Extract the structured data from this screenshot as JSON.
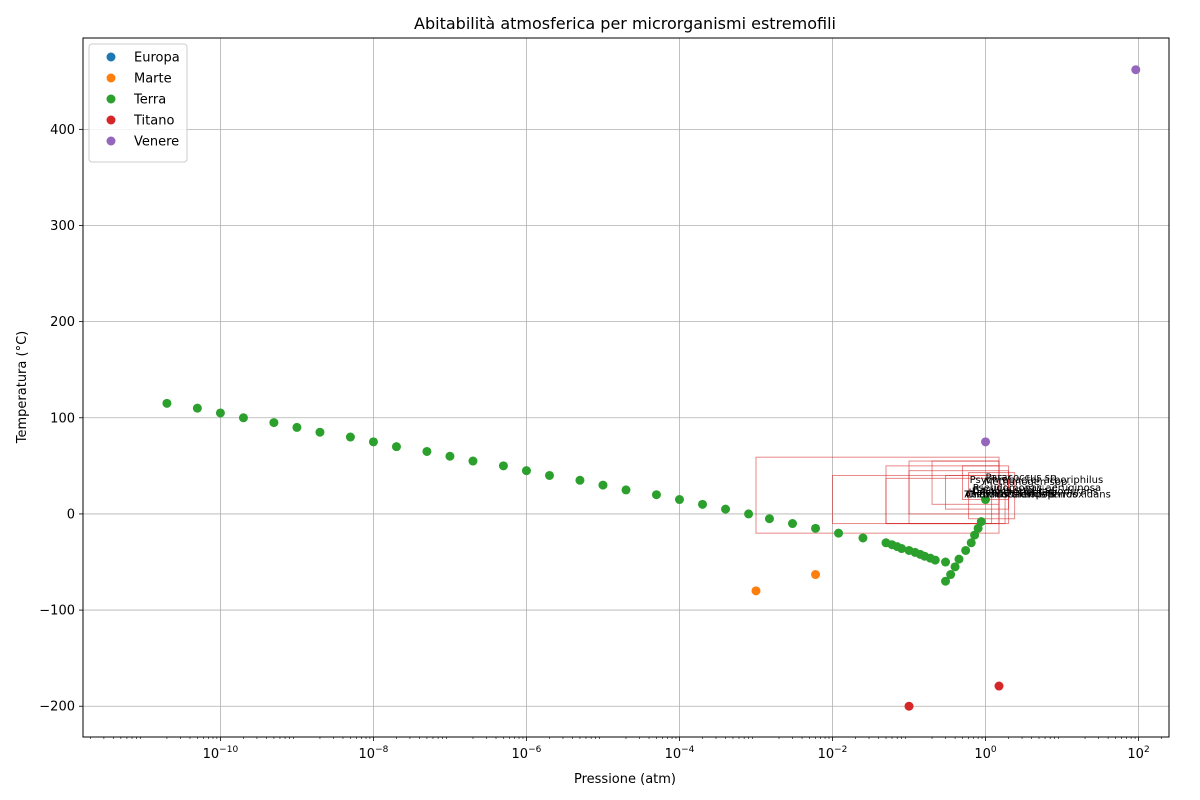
{
  "chart_data": {
    "type": "scatter",
    "title": "Abitabilità atmosferica per microrganismi estremofili",
    "xlabel": "Pressione (atm)",
    "ylabel": "Temperatura (°C)",
    "xscale": "log",
    "xlim": [
      1.6e-12,
      250
    ],
    "ylim": [
      -232,
      495
    ],
    "grid": true,
    "legend_position": "top-left",
    "x_ticks": [
      {
        "value": 1e-10,
        "base": "10",
        "exp": "−10"
      },
      {
        "value": 1e-08,
        "base": "10",
        "exp": "−8"
      },
      {
        "value": 1e-06,
        "base": "10",
        "exp": "−6"
      },
      {
        "value": 0.0001,
        "base": "10",
        "exp": "−4"
      },
      {
        "value": 0.01,
        "base": "10",
        "exp": "−2"
      },
      {
        "value": 1,
        "base": "10",
        "exp": "0"
      },
      {
        "value": 100,
        "base": "10",
        "exp": "2"
      }
    ],
    "y_ticks": [
      {
        "value": -200,
        "label": "−200"
      },
      {
        "value": -100,
        "label": "−100"
      },
      {
        "value": 0,
        "label": "0"
      },
      {
        "value": 100,
        "label": "100"
      },
      {
        "value": 200,
        "label": "200"
      },
      {
        "value": 300,
        "label": "300"
      },
      {
        "value": 400,
        "label": "400"
      }
    ],
    "series": [
      {
        "name": "Europa",
        "color": "#1f77b4",
        "points": []
      },
      {
        "name": "Marte",
        "color": "#ff7f0e",
        "points": [
          [
            0.001,
            -80
          ],
          [
            0.006,
            -63
          ]
        ]
      },
      {
        "name": "Terra",
        "color": "#2ca02c",
        "points": [
          [
            2e-11,
            115
          ],
          [
            5e-11,
            110
          ],
          [
            1e-10,
            105
          ],
          [
            2e-10,
            100
          ],
          [
            5e-10,
            95
          ],
          [
            1e-09,
            90
          ],
          [
            2e-09,
            85
          ],
          [
            5e-09,
            80
          ],
          [
            1e-08,
            75
          ],
          [
            2e-08,
            70
          ],
          [
            5e-08,
            65
          ],
          [
            1e-07,
            60
          ],
          [
            2e-07,
            55
          ],
          [
            5e-07,
            50
          ],
          [
            1e-06,
            45
          ],
          [
            2e-06,
            40
          ],
          [
            5e-06,
            35
          ],
          [
            1e-05,
            30
          ],
          [
            2e-05,
            25
          ],
          [
            5e-05,
            20
          ],
          [
            0.0001,
            15
          ],
          [
            0.0002,
            10
          ],
          [
            0.0004,
            5
          ],
          [
            0.0008,
            0
          ],
          [
            0.0015,
            -5
          ],
          [
            0.003,
            -10
          ],
          [
            0.006,
            -15
          ],
          [
            0.012,
            -20
          ],
          [
            0.025,
            -25
          ],
          [
            0.05,
            -30
          ],
          [
            0.06,
            -32
          ],
          [
            0.07,
            -34
          ],
          [
            0.08,
            -36
          ],
          [
            0.1,
            -38
          ],
          [
            0.12,
            -40
          ],
          [
            0.14,
            -42
          ],
          [
            0.16,
            -44
          ],
          [
            0.19,
            -46
          ],
          [
            0.22,
            -48
          ],
          [
            0.3,
            -50
          ],
          [
            0.3,
            -70
          ],
          [
            0.35,
            -63
          ],
          [
            0.4,
            -55
          ],
          [
            0.45,
            -47
          ],
          [
            0.55,
            -38
          ],
          [
            0.65,
            -30
          ],
          [
            0.72,
            -22
          ],
          [
            0.8,
            -15
          ],
          [
            0.88,
            -8
          ],
          [
            1.0,
            15
          ]
        ]
      },
      {
        "name": "Titano",
        "color": "#d62728",
        "points": [
          [
            0.1,
            -200
          ],
          [
            1.5,
            -179
          ]
        ]
      },
      {
        "name": "Venere",
        "color": "#9467bd",
        "points": [
          [
            1.0,
            75
          ],
          [
            92,
            462
          ]
        ]
      }
    ],
    "ranges": [
      {
        "p_min": 0.001,
        "p_max": 1.5,
        "t_min": -20,
        "t_max": 59
      },
      {
        "p_min": 0.01,
        "p_max": 1.2,
        "t_min": -10,
        "t_max": 40
      },
      {
        "p_min": 0.05,
        "p_max": 1.5,
        "t_min": -10,
        "t_max": 50
      },
      {
        "p_min": 0.05,
        "p_max": 1.8,
        "t_min": -10,
        "t_max": 37
      },
      {
        "p_min": 0.1,
        "p_max": 2.0,
        "t_min": -10,
        "t_max": 45
      },
      {
        "p_min": 0.1,
        "p_max": 1.5,
        "t_min": 0,
        "t_max": 55
      },
      {
        "p_min": 0.2,
        "p_max": 1.5,
        "t_min": 10,
        "t_max": 55
      },
      {
        "p_min": 0.3,
        "p_max": 2.0,
        "t_min": 5,
        "t_max": 40
      },
      {
        "p_min": 0.5,
        "p_max": 2.0,
        "t_min": 15,
        "t_max": 50
      },
      {
        "p_min": 0.6,
        "p_max": 2.4,
        "t_min": -5,
        "t_max": 43
      }
    ],
    "annotations": [
      {
        "text": "Psychrobacter arboriphilus",
        "x": 0.62,
        "y": 32
      },
      {
        "text": "Paracoccus sp.",
        "x": 1.0,
        "y": 35
      },
      {
        "text": "Methanogen spp.",
        "x": 0.95,
        "y": 30
      },
      {
        "text": "Pseudomonas aeruginosa",
        "x": 0.68,
        "y": 24
      },
      {
        "text": "Bacillus subtilis",
        "x": 0.68,
        "y": 22
      },
      {
        "text": "Deinococcus radiodurans",
        "x": 0.66,
        "y": 20
      },
      {
        "text": "Halobacterium sp.",
        "x": 0.6,
        "y": 19
      },
      {
        "text": "Acidithiobacillus ferrooxidans",
        "x": 0.53,
        "y": 17
      },
      {
        "text": "Thermus thermophilus",
        "x": 0.53,
        "y": 17
      },
      {
        "text": "Chroococcidiopsis",
        "x": 0.55,
        "y": 17
      }
    ]
  }
}
